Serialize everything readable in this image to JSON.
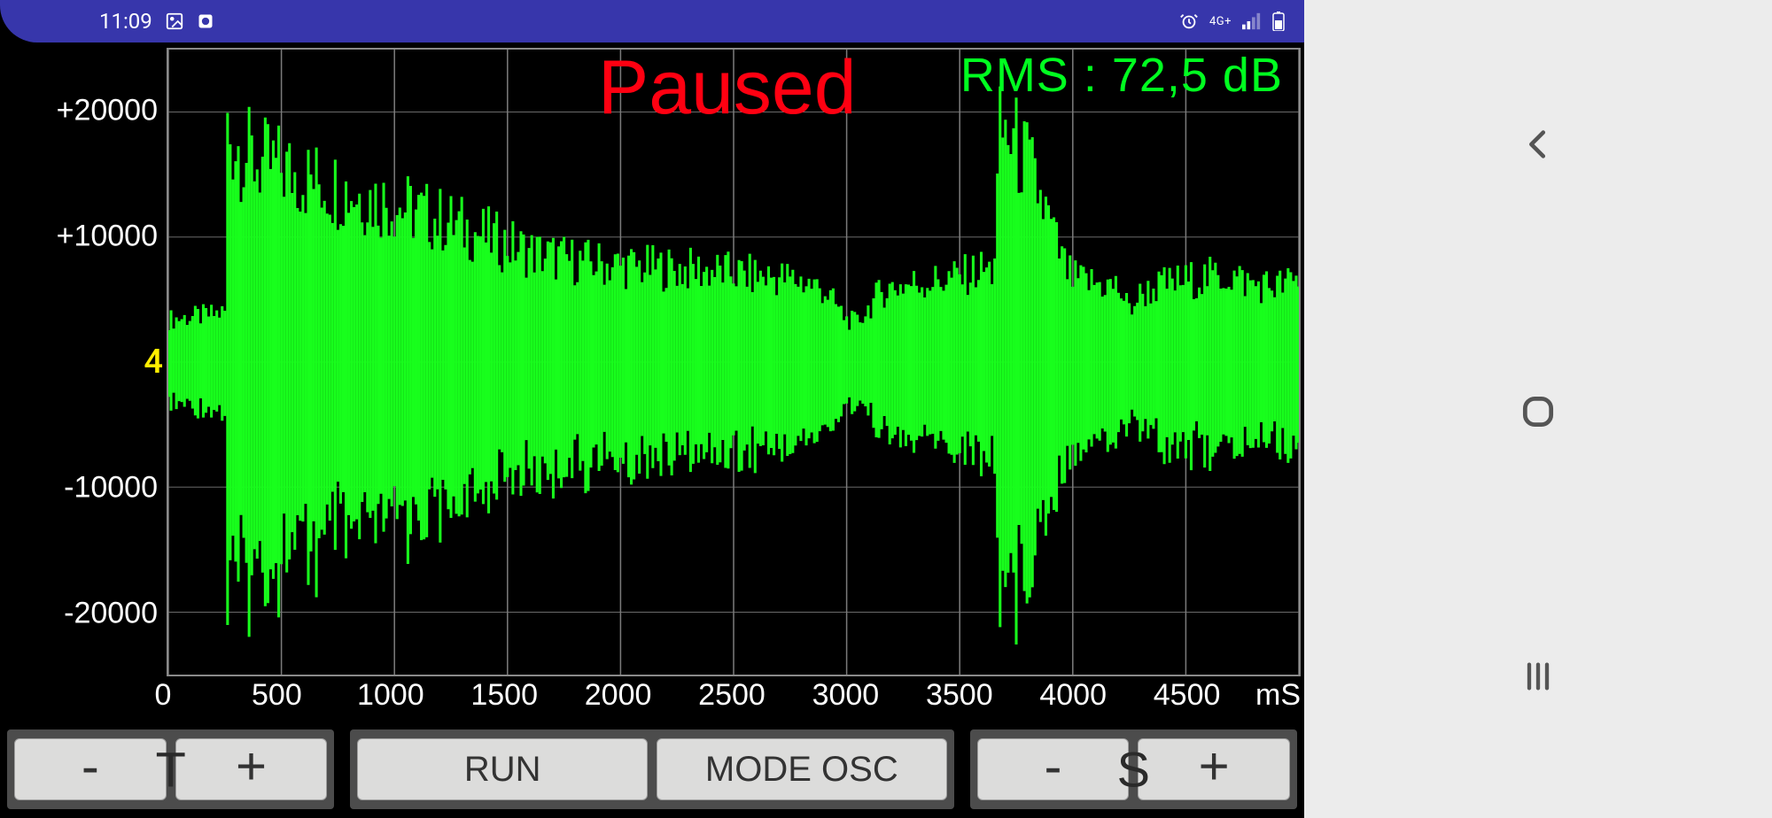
{
  "status_bar": {
    "time": "11:09",
    "network_label": "4G+",
    "bg_color": "#3736ab"
  },
  "chart": {
    "type": "oscilloscope-waveform",
    "state_text": "Paused",
    "state_color": "#ff0011",
    "rms_label": "RMS : 72,5 dB",
    "rms_color": "#00ff20",
    "waveform_color": "#18ff1c",
    "background_color": "#000000",
    "grid_color": "#7a7a7a",
    "border_color": "#8a8a8a",
    "zero_marker": "4",
    "zero_marker_color": "#ffee00",
    "y_axis": {
      "min": -25000,
      "max": 25000,
      "ticks": [
        {
          "value": 20000,
          "label": "+20000"
        },
        {
          "value": 10000,
          "label": "+10000"
        },
        {
          "value": -10000,
          "label": "-10000"
        },
        {
          "value": -20000,
          "label": "-20000"
        }
      ],
      "grid_values": [
        20000,
        10000,
        0,
        -10000,
        -20000
      ],
      "label_color": "#ffffff",
      "tick_fontsize": 34
    },
    "x_axis": {
      "min": 0,
      "max": 5000,
      "ticks": [
        {
          "value": 0,
          "label": "0"
        },
        {
          "value": 500,
          "label": "500"
        },
        {
          "value": 1000,
          "label": "1000"
        },
        {
          "value": 1500,
          "label": "1500"
        },
        {
          "value": 2000,
          "label": "2000"
        },
        {
          "value": 2500,
          "label": "2500"
        },
        {
          "value": 3000,
          "label": "3000"
        },
        {
          "value": 3500,
          "label": "3500"
        },
        {
          "value": 4000,
          "label": "4000"
        },
        {
          "value": 4500,
          "label": "4500"
        }
      ],
      "grid_step": 500,
      "unit_label": "mS",
      "label_color": "#ffffff",
      "tick_fontsize": 34
    },
    "waveform_envelope": [
      [
        0,
        3400
      ],
      [
        100,
        3600
      ],
      [
        200,
        3800
      ],
      [
        250,
        4000
      ],
      [
        260,
        18500
      ],
      [
        300,
        17500
      ],
      [
        350,
        16500
      ],
      [
        420,
        15800
      ],
      [
        500,
        15500
      ],
      [
        600,
        14800
      ],
      [
        700,
        14200
      ],
      [
        800,
        13700
      ],
      [
        900,
        13100
      ],
      [
        1000,
        12600
      ],
      [
        1100,
        12000
      ],
      [
        1200,
        11400
      ],
      [
        1300,
        10800
      ],
      [
        1400,
        10100
      ],
      [
        1500,
        9400
      ],
      [
        1600,
        8800
      ],
      [
        1700,
        8400
      ],
      [
        1800,
        8100
      ],
      [
        1900,
        7900
      ],
      [
        2000,
        7700
      ],
      [
        2100,
        7600
      ],
      [
        2200,
        7500
      ],
      [
        2300,
        7400
      ],
      [
        2400,
        7300
      ],
      [
        2500,
        7100
      ],
      [
        2600,
        6900
      ],
      [
        2700,
        6800
      ],
      [
        2800,
        6500
      ],
      [
        2900,
        5800
      ],
      [
        2950,
        4600
      ],
      [
        3000,
        3400
      ],
      [
        3050,
        3200
      ],
      [
        3100,
        4400
      ],
      [
        3150,
        5600
      ],
      [
        3200,
        6000
      ],
      [
        3300,
        6300
      ],
      [
        3400,
        6500
      ],
      [
        3500,
        6800
      ],
      [
        3600,
        7400
      ],
      [
        3650,
        7200
      ],
      [
        3680,
        18600
      ],
      [
        3720,
        18000
      ],
      [
        3760,
        17000
      ],
      [
        3800,
        15800
      ],
      [
        3840,
        14000
      ],
      [
        3880,
        12000
      ],
      [
        3920,
        9800
      ],
      [
        3960,
        7800
      ],
      [
        4000,
        6600
      ],
      [
        4100,
        6300
      ],
      [
        4200,
        6000
      ],
      [
        4250,
        4200
      ],
      [
        4300,
        5400
      ],
      [
        4400,
        6200
      ],
      [
        4500,
        6500
      ],
      [
        4600,
        6800
      ],
      [
        4700,
        6900
      ],
      [
        4800,
        6200
      ],
      [
        4900,
        6100
      ],
      [
        5000,
        6500
      ]
    ],
    "fill_density": 420
  },
  "buttons": {
    "time_group_label": "T",
    "scale_group_label": "S",
    "t_minus": "-",
    "t_plus": "+",
    "s_minus": "-",
    "s_plus": "+",
    "run": "RUN",
    "mode": "MODE OSC",
    "btn_bg": "#dcdcdb",
    "btn_fontsize": 40,
    "group_bg": "#4c4c4c"
  }
}
